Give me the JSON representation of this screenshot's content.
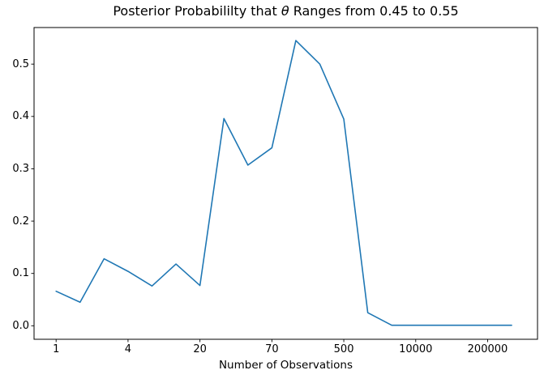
{
  "chart_data": {
    "type": "line",
    "title": "Posterior Probabililty that θ Ranges from 0.45 to 0.55",
    "title_parts": {
      "prefix": "Posterior Probabililty that ",
      "theta": "θ",
      "suffix": " Ranges from 0.45 to 0.55"
    },
    "xlabel": "Number of Observations",
    "ylabel": "",
    "x_axis_note": "20 points at equally spaced index positions; labeled ticks every 3rd index",
    "x_tick_indices": [
      0,
      3,
      6,
      9,
      12,
      15,
      18
    ],
    "x_tick_labels": [
      "1",
      "4",
      "20",
      "70",
      "500",
      "10000",
      "200000"
    ],
    "y_tick_values": [
      0.0,
      0.1,
      0.2,
      0.3,
      0.4,
      0.5
    ],
    "y_tick_labels": [
      "0.0",
      "0.1",
      "0.2",
      "0.3",
      "0.4",
      "0.5"
    ],
    "xlim": [
      -0.92,
      20.08
    ],
    "ylim": [
      -0.0258,
      0.5699
    ],
    "grid": false,
    "legend": false,
    "line_color": "#1f77b4",
    "axis_color": "#000000",
    "series": [
      {
        "name": "posterior-probability",
        "x_index": [
          0,
          1,
          2,
          3,
          4,
          5,
          6,
          7,
          8,
          9,
          10,
          11,
          12,
          13,
          14,
          15,
          16,
          17,
          18,
          19
        ],
        "values": [
          0.066,
          0.045,
          0.128,
          0.104,
          0.076,
          0.118,
          0.077,
          0.396,
          0.307,
          0.34,
          0.545,
          0.5,
          0.395,
          0.025,
          0.001,
          0.001,
          0.001,
          0.001,
          0.001,
          0.001
        ]
      }
    ]
  }
}
